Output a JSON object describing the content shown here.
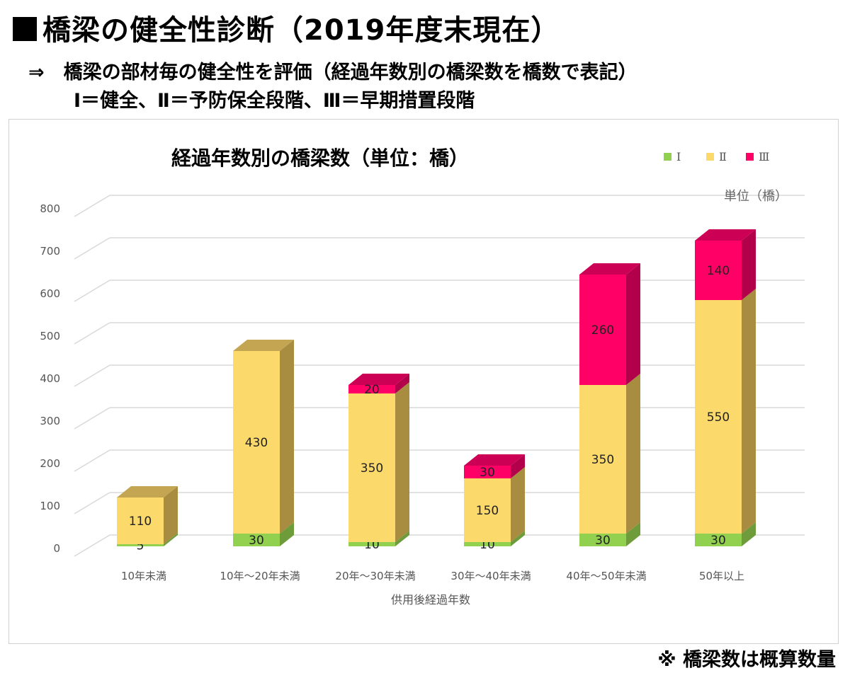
{
  "header": {
    "title": "橋梁の健全性診断（2019年度末現在）",
    "subtitle_line1": "⇒　橋梁の部材毎の健全性を評価（経過年数別の橋梁数を橋数で表記）",
    "subtitle_line2": "Ⅰ＝健全、Ⅱ＝予防保全段階、Ⅲ＝早期措置段階"
  },
  "footnote": "※ 橋梁数は概算数量",
  "chart_data": {
    "type": "bar",
    "stacked": true,
    "title": "経過年数別の橋梁数（単位：橋）",
    "unit_label": "単位（橋）",
    "xlabel": "供用後経過年数",
    "ylabel": "",
    "ylim": [
      0,
      800
    ],
    "yticks": [
      0,
      100,
      200,
      300,
      400,
      500,
      600,
      700,
      800
    ],
    "grid": true,
    "legend_position": "top-right",
    "categories": [
      "10年未満",
      "10年～20年未満",
      "20年～30年未満",
      "30年～40年未満",
      "40年～50年未満",
      "50年以上"
    ],
    "series": [
      {
        "name": "Ⅰ",
        "color": "#92d050",
        "side_color": "#6e9c3b",
        "top_color": "#7fb446",
        "values": [
          5,
          30,
          10,
          10,
          30,
          30
        ]
      },
      {
        "name": "Ⅱ",
        "color": "#fcd96b",
        "side_color": "#a88c40",
        "top_color": "#c3a552",
        "values": [
          110,
          430,
          350,
          150,
          350,
          550
        ]
      },
      {
        "name": "Ⅲ",
        "color": "#ff0066",
        "side_color": "#b3004a",
        "top_color": "#cc0055",
        "values": [
          null,
          null,
          20,
          30,
          260,
          140
        ]
      }
    ],
    "data_labels": [
      [
        "5",
        "110",
        null
      ],
      [
        "30",
        "430",
        null
      ],
      [
        "10",
        "350",
        "20"
      ],
      [
        "10",
        "150",
        "30"
      ],
      [
        "30",
        "350",
        "260"
      ],
      [
        "30",
        "550",
        "140"
      ]
    ]
  }
}
